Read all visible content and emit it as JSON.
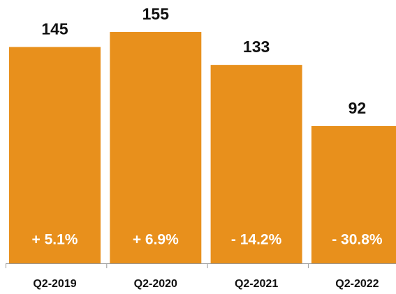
{
  "chart_data": {
    "type": "bar",
    "categories": [
      "Q2-2019",
      "Q2-2020",
      "Q2-2021",
      "Q2-2022"
    ],
    "values": [
      145,
      155,
      133,
      92
    ],
    "annotations": [
      "+ 5.1%",
      "+ 6.9%",
      "- 14.2%",
      "- 30.8%"
    ],
    "color": "#e8901c"
  }
}
